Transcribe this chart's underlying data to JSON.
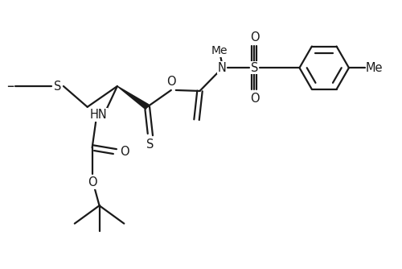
{
  "background_color": "#ffffff",
  "line_color": "#1a1a1a",
  "line_width": 1.6,
  "font_size": 10.5,
  "figsize": [
    5.0,
    3.34
  ],
  "dpi": 100,
  "xlim": [
    0,
    10
  ],
  "ylim": [
    0,
    6.68
  ]
}
